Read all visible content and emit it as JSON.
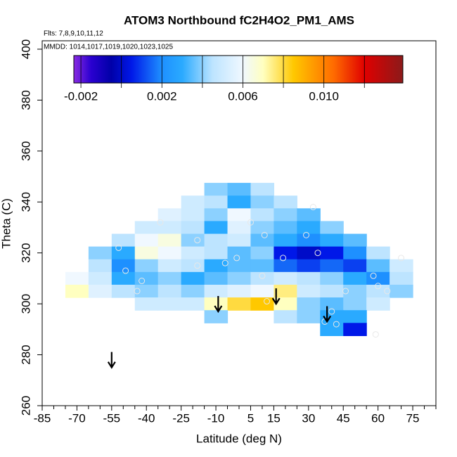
{
  "chart_data": {
    "type": "heatmap",
    "title": "ATOM3 Northbound fC2H4O2_PM1_AMS",
    "flights": "Flts: 7,8,9,10,11,12",
    "dates": "MMDD: 1014,1017,1019,1020,1023,1025",
    "xlabel": "Latitude (deg N)",
    "ylabel": "Theta (C)",
    "xlim": [
      -85,
      85
    ],
    "ylim": [
      260,
      403.3
    ],
    "xticks": [
      -85,
      -70,
      -55,
      -40,
      -25,
      -10,
      5,
      15,
      30,
      45,
      60,
      75
    ],
    "xminorticks": [
      -80,
      -75,
      -65,
      -60,
      -50,
      -45,
      -35,
      -30,
      -20,
      -15,
      -5,
      0,
      10,
      20,
      25,
      35,
      40,
      50,
      55,
      65,
      70,
      80,
      85
    ],
    "yticks": [
      260,
      280,
      300,
      320,
      340,
      360,
      380,
      400
    ],
    "x": [
      -70,
      -60,
      -50,
      -40,
      -30,
      -20,
      -10,
      0,
      10,
      20,
      30,
      40,
      50,
      60,
      70
    ],
    "y": [
      345,
      340,
      335,
      330,
      325,
      320,
      315,
      310,
      305,
      300,
      295,
      290
    ],
    "values": [
      [
        null,
        null,
        null,
        null,
        null,
        null,
        0.004,
        0.0035,
        0.0045,
        null,
        null,
        null,
        null,
        null,
        null
      ],
      [
        null,
        null,
        null,
        null,
        null,
        0.005,
        0.0045,
        0.003,
        0.004,
        0.0045,
        null,
        null,
        null,
        null,
        null
      ],
      [
        null,
        null,
        null,
        null,
        0.0055,
        0.005,
        0.004,
        0.006,
        0.0045,
        0.004,
        0.0035,
        null,
        null,
        null,
        null
      ],
      [
        null,
        null,
        null,
        0.005,
        0.005,
        0.0045,
        0.003,
        0.0055,
        0.004,
        0.0035,
        0.003,
        0.004,
        null,
        null,
        null
      ],
      [
        null,
        null,
        0.0045,
        0.006,
        0.0065,
        0.004,
        0.0045,
        0.005,
        0.0035,
        0.003,
        0.002,
        0.003,
        0.0035,
        null,
        null
      ],
      [
        null,
        0.004,
        0.003,
        0.0065,
        0.006,
        0.005,
        0.0045,
        0.0035,
        0.004,
        0.0005,
        0.0,
        0.0005,
        0.002,
        0.0045,
        null
      ],
      [
        null,
        0.0045,
        0.002,
        0.004,
        0.005,
        0.0045,
        0.003,
        0.0035,
        0.0035,
        0.0015,
        0.001,
        0.0015,
        0.001,
        0.0035,
        0.005
      ],
      [
        0.006,
        0.005,
        0.003,
        0.0035,
        0.004,
        0.003,
        0.0035,
        0.004,
        0.0045,
        0.005,
        0.0045,
        0.004,
        0.003,
        0.002,
        0.0045
      ],
      [
        0.007,
        0.0055,
        0.0045,
        0.004,
        0.0045,
        0.004,
        0.005,
        0.0055,
        0.006,
        0.0075,
        0.005,
        0.0045,
        0.004,
        0.0045,
        0.004
      ],
      [
        null,
        null,
        null,
        0.005,
        0.005,
        0.005,
        0.007,
        0.008,
        0.0085,
        0.007,
        0.004,
        0.0035,
        0.004,
        0.005,
        null
      ],
      [
        null,
        null,
        null,
        null,
        null,
        null,
        0.004,
        null,
        null,
        0.0045,
        0.004,
        0.003,
        0.003,
        null,
        null
      ],
      [
        null,
        null,
        null,
        null,
        null,
        null,
        null,
        null,
        null,
        null,
        null,
        0.003,
        0.0005,
        null,
        null
      ]
    ],
    "points": {
      "x": [
        -44,
        -49,
        -52,
        -42,
        -34,
        -18,
        -18,
        -6,
        -1,
        5,
        10,
        12,
        11,
        19,
        29,
        34,
        37,
        40,
        42,
        46,
        58,
        59,
        60,
        64,
        70,
        32
      ],
      "y": [
        305,
        313,
        322,
        309,
        332,
        325,
        315,
        316,
        318,
        332,
        311,
        301,
        327,
        318,
        327,
        320,
        293,
        297,
        292,
        305,
        311,
        288,
        307,
        305,
        318,
        338
      ]
    },
    "arrows": {
      "x": [
        -55,
        -9,
        16,
        38
      ],
      "y": [
        275,
        297,
        300,
        293
      ]
    },
    "colorbar": {
      "lim": [
        -0.00235,
        0.0139
      ],
      "ticks": [
        -0.002,
        0.002,
        0.006,
        {
          "value": 0.01,
          "label": "0.010"
        }
      ],
      "breaks": [
        -0.002,
        0,
        0.002,
        0.004,
        0.006,
        0.008,
        0.01,
        0.012
      ]
    },
    "colorscale": [
      [
        -0.00235,
        "#8a2be2"
      ],
      [
        -0.0015,
        "#2a00d0"
      ],
      [
        -0.0005,
        "#0000a8"
      ],
      [
        0.0005,
        "#0018e8"
      ],
      [
        0.002,
        "#1e90ff"
      ],
      [
        0.003,
        "#2aaaff"
      ],
      [
        0.0045,
        "#bde4ff"
      ],
      [
        0.006,
        "#f0f8ff"
      ],
      [
        0.007,
        "#ffffc0"
      ],
      [
        0.0085,
        "#ffc800"
      ],
      [
        0.0105,
        "#ff6a00"
      ],
      [
        0.012,
        "#e00000"
      ],
      [
        0.0139,
        "#8b1a1a"
      ]
    ]
  }
}
